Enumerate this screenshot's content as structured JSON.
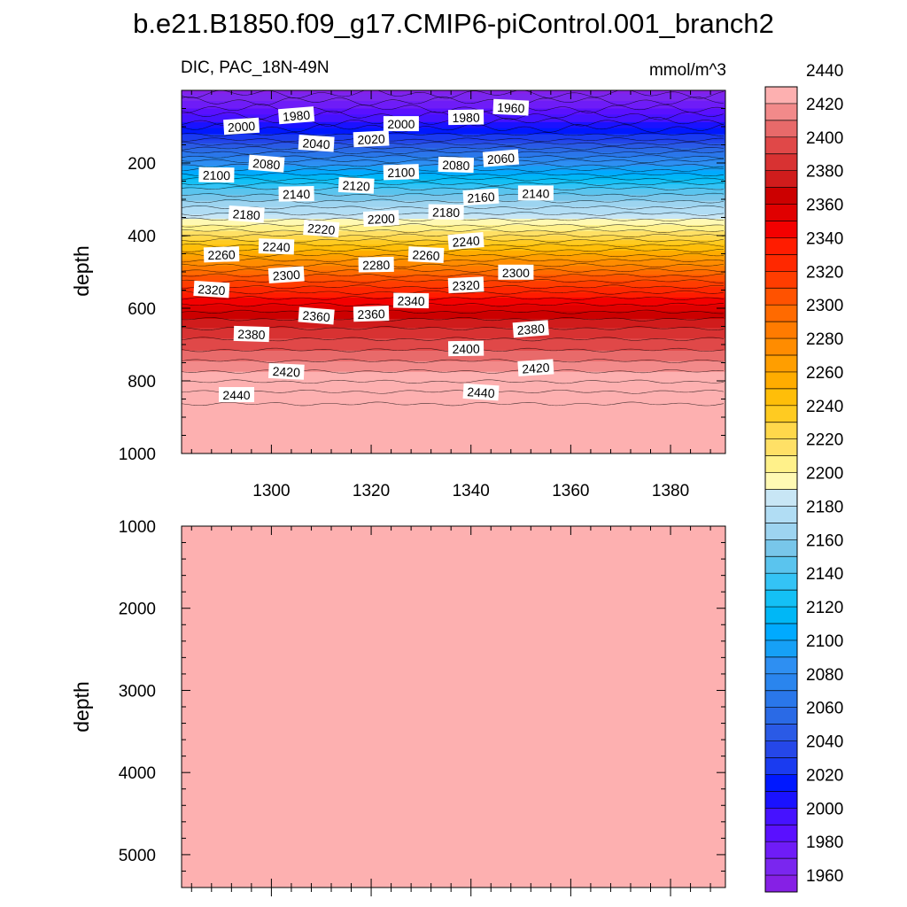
{
  "title": "b.e21.B1850.f09_g17.CMIP6-piControl.001_branch2",
  "chart_data": [
    {
      "type": "heatmap",
      "panel": "upper",
      "variable": "DIC",
      "region": "PAC_18N-49N",
      "subtitle_left": "DIC, PAC_18N-49N",
      "units": "mmol/m^3",
      "ylabel": "depth",
      "xlabel": "",
      "xlim": [
        1282,
        1391
      ],
      "ylim": [
        1000,
        0
      ],
      "x_ticks": [
        1300,
        1320,
        1340,
        1360,
        1380
      ],
      "x_tick_labels": [
        "1300",
        "1320",
        "1340",
        "1360",
        "1380"
      ],
      "y_ticks": [
        200,
        400,
        600,
        800,
        1000
      ],
      "y_tick_labels": [
        "200",
        "400",
        "600",
        "800",
        "1000"
      ],
      "depth_profile": [
        {
          "depth": 0,
          "value": 1955
        },
        {
          "depth": 60,
          "value": 1985
        },
        {
          "depth": 130,
          "value": 2025
        },
        {
          "depth": 200,
          "value": 2085
        },
        {
          "depth": 270,
          "value": 2140
        },
        {
          "depth": 340,
          "value": 2180
        },
        {
          "depth": 380,
          "value": 2205
        },
        {
          "depth": 440,
          "value": 2250
        },
        {
          "depth": 510,
          "value": 2300
        },
        {
          "depth": 580,
          "value": 2345
        },
        {
          "depth": 640,
          "value": 2375
        },
        {
          "depth": 700,
          "value": 2395
        },
        {
          "depth": 760,
          "value": 2415
        },
        {
          "depth": 830,
          "value": 2440
        },
        {
          "depth": 870,
          "value": 2452
        },
        {
          "depth": 1000,
          "value": 2460
        }
      ],
      "contour_labels": [
        {
          "text": "1980",
          "x": 1305,
          "depth": 70
        },
        {
          "text": "1980",
          "x": 1339,
          "depth": 75
        },
        {
          "text": "1960",
          "x": 1348,
          "depth": 48
        },
        {
          "text": "2000",
          "x": 1294,
          "depth": 100
        },
        {
          "text": "2000",
          "x": 1326,
          "depth": 93
        },
        {
          "text": "2040",
          "x": 1309,
          "depth": 147
        },
        {
          "text": "2020",
          "x": 1320,
          "depth": 135
        },
        {
          "text": "2100",
          "x": 1289,
          "depth": 234
        },
        {
          "text": "2080",
          "x": 1299,
          "depth": 203
        },
        {
          "text": "2100",
          "x": 1326,
          "depth": 226
        },
        {
          "text": "2080",
          "x": 1337,
          "depth": 206
        },
        {
          "text": "2060",
          "x": 1346,
          "depth": 188
        },
        {
          "text": "2140",
          "x": 1305,
          "depth": 286
        },
        {
          "text": "2120",
          "x": 1317,
          "depth": 263
        },
        {
          "text": "2160",
          "x": 1342,
          "depth": 295
        },
        {
          "text": "2140",
          "x": 1353,
          "depth": 284
        },
        {
          "text": "2180",
          "x": 1295,
          "depth": 342
        },
        {
          "text": "2200",
          "x": 1322,
          "depth": 354
        },
        {
          "text": "2180",
          "x": 1335,
          "depth": 336
        },
        {
          "text": "2220",
          "x": 1310,
          "depth": 382
        },
        {
          "text": "2260",
          "x": 1290,
          "depth": 453
        },
        {
          "text": "2240",
          "x": 1301,
          "depth": 431
        },
        {
          "text": "2240",
          "x": 1339,
          "depth": 416
        },
        {
          "text": "2280",
          "x": 1321,
          "depth": 481
        },
        {
          "text": "2260",
          "x": 1331,
          "depth": 454
        },
        {
          "text": "2300",
          "x": 1303,
          "depth": 509
        },
        {
          "text": "2300",
          "x": 1349,
          "depth": 502
        },
        {
          "text": "2320",
          "x": 1288,
          "depth": 549
        },
        {
          "text": "2320",
          "x": 1339,
          "depth": 537
        },
        {
          "text": "2340",
          "x": 1328,
          "depth": 580
        },
        {
          "text": "2360",
          "x": 1309,
          "depth": 622
        },
        {
          "text": "2360",
          "x": 1320,
          "depth": 616
        },
        {
          "text": "2380",
          "x": 1296,
          "depth": 672
        },
        {
          "text": "2380",
          "x": 1352,
          "depth": 658
        },
        {
          "text": "2400",
          "x": 1339,
          "depth": 712
        },
        {
          "text": "2420",
          "x": 1303,
          "depth": 775
        },
        {
          "text": "2420",
          "x": 1353,
          "depth": 765
        },
        {
          "text": "2440",
          "x": 1293,
          "depth": 839
        },
        {
          "text": "2440",
          "x": 1342,
          "depth": 832
        }
      ]
    },
    {
      "type": "heatmap",
      "panel": "lower",
      "variable": "DIC",
      "ylabel": "depth",
      "xlim": [
        1282,
        1391
      ],
      "ylim": [
        5400,
        1000
      ],
      "y_ticks": [
        1000,
        2000,
        3000,
        4000,
        5000
      ],
      "y_tick_labels": [
        "1000",
        "2000",
        "3000",
        "4000",
        "5000"
      ],
      "fill_value": 2460
    }
  ],
  "colorbar": {
    "levels_min": 1950,
    "levels_max": 2455,
    "interval": 10,
    "tick_labels": [
      "1960",
      "1980",
      "2000",
      "2020",
      "2040",
      "2060",
      "2080",
      "2100",
      "2120",
      "2140",
      "2160",
      "2180",
      "2200",
      "2220",
      "2240",
      "2260",
      "2280",
      "2300",
      "2320",
      "2340",
      "2360",
      "2380",
      "2400",
      "2420",
      "2440"
    ],
    "colors": [
      "#8620e5",
      "#7a26ef",
      "#6f1cf7",
      "#5a10ff",
      "#4612ff",
      "#1a12ff",
      "#0018ff",
      "#1a3bf0",
      "#2547e8",
      "#2a5ae6",
      "#2a6ae6",
      "#2a77ea",
      "#2a85ee",
      "#2e8ff2",
      "#16a0f6",
      "#00aaff",
      "#00b7f6",
      "#14c0f5",
      "#34c3f5",
      "#5ac4ee",
      "#78c6ea",
      "#9dd4f0",
      "#b1ddf4",
      "#c8e6f5",
      "#fff9b3",
      "#fff18a",
      "#ffe066",
      "#ffd84b",
      "#ffcb21",
      "#ffbe09",
      "#ffac00",
      "#ff9e00",
      "#ff8c00",
      "#ff7b00",
      "#ff6a00",
      "#ff5200",
      "#ff3d00",
      "#ff2800",
      "#ff1c00",
      "#f30000",
      "#e00000",
      "#cc0000",
      "#d01c1c",
      "#d83232",
      "#e04848",
      "#e86a6a",
      "#f28a8a",
      "#fdb0b0"
    ]
  }
}
